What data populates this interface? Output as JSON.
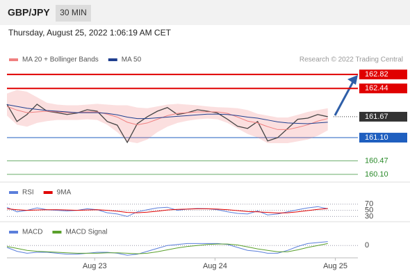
{
  "header": {
    "symbol": "GBP/JPY",
    "interval": "30 MIN",
    "datetime": "Thursday, August 25, 2022 1:06:19 AM CET"
  },
  "chart_data": [
    {
      "type": "line",
      "credit": "Research © 2022 Trading Central",
      "x": [
        0,
        4,
        8,
        12,
        16,
        20,
        24,
        28,
        32,
        36,
        40,
        44,
        48,
        52,
        56,
        60,
        64,
        68,
        72,
        76,
        80,
        84,
        88,
        92,
        96,
        100,
        104,
        108,
        112,
        116,
        120,
        124,
        128
      ],
      "xlim": [
        0,
        140
      ],
      "xticks": [
        {
          "value": 35,
          "label": "Aug 23"
        },
        {
          "value": 83,
          "label": "Aug 24"
        },
        {
          "value": 131,
          "label": "Aug 25"
        }
      ],
      "ylim": [
        159.89,
        163.05
      ],
      "color": "#444444",
      "values": [
        162.01,
        161.54,
        161.73,
        162.01,
        161.82,
        161.78,
        161.73,
        161.77,
        161.86,
        161.82,
        161.54,
        161.44,
        160.97,
        161.48,
        161.67,
        161.82,
        161.92,
        161.73,
        161.78,
        161.86,
        161.82,
        161.77,
        161.6,
        161.41,
        161.35,
        161.54,
        161.01,
        161.1,
        161.35,
        161.6,
        161.63,
        161.73,
        161.67
      ],
      "series": [
        {
          "name": "MA 20 + Bollinger Bands",
          "color": "#f08080",
          "values": [
            161.95,
            161.85,
            161.78,
            161.8,
            161.82,
            161.8,
            161.78,
            161.78,
            161.8,
            161.8,
            161.74,
            161.66,
            161.52,
            161.45,
            161.5,
            161.6,
            161.7,
            161.76,
            161.78,
            161.8,
            161.8,
            161.8,
            161.76,
            161.66,
            161.55,
            161.5,
            161.4,
            161.32,
            161.32,
            161.38,
            161.45,
            161.55,
            161.62
          ],
          "upper": [
            162.3,
            162.4,
            162.35,
            162.2,
            162.05,
            162.0,
            161.98,
            161.98,
            162.0,
            162.02,
            162.0,
            161.98,
            161.98,
            161.92,
            161.9,
            161.95,
            162.0,
            162.02,
            162.0,
            161.98,
            161.95,
            161.93,
            161.92,
            161.9,
            161.85,
            161.75,
            161.7,
            161.65,
            161.65,
            161.72,
            161.8,
            161.85,
            161.9
          ],
          "lower": [
            161.7,
            161.45,
            161.4,
            161.5,
            161.55,
            161.58,
            161.58,
            161.58,
            161.6,
            161.58,
            161.45,
            161.25,
            161.0,
            160.95,
            161.05,
            161.25,
            161.4,
            161.5,
            161.56,
            161.6,
            161.62,
            161.6,
            161.5,
            161.35,
            161.2,
            161.1,
            160.95,
            160.95,
            160.95,
            161.0,
            161.05,
            161.15,
            161.3
          ]
        },
        {
          "name": "MA 50",
          "color": "#1f3f8f",
          "values": [
            162.0,
            161.95,
            161.9,
            161.87,
            161.84,
            161.82,
            161.8,
            161.78,
            161.78,
            161.78,
            161.76,
            161.72,
            161.66,
            161.62,
            161.62,
            161.64,
            161.66,
            161.68,
            161.7,
            161.72,
            161.74,
            161.74,
            161.73,
            161.7,
            161.66,
            161.63,
            161.58,
            161.53,
            161.5,
            161.49,
            161.48,
            161.5,
            161.52
          ]
        }
      ],
      "levels": {
        "values": [
          162.82,
          162.44,
          161.67,
          161.1,
          160.47,
          160.1
        ],
        "value_labels": [
          "162.82",
          "162.44",
          "161.67",
          "161.10",
          "160.47",
          "160.10"
        ],
        "colors": [
          "#e00000",
          "#e00000",
          "#333333",
          "#1f5fbf",
          "#2a8a2a",
          "#2a8a2a"
        ],
        "label_fill": [
          true,
          true,
          true,
          true,
          false,
          false
        ]
      }
    },
    {
      "type": "line",
      "ylim": [
        15,
        90
      ],
      "yticks": [
        70,
        50,
        30
      ],
      "series": [
        {
          "name": "RSI",
          "color": "#5b7fdb",
          "values": [
            60,
            45,
            50,
            58,
            52,
            50,
            48,
            50,
            55,
            52,
            42,
            38,
            30,
            45,
            52,
            58,
            60,
            50,
            54,
            56,
            55,
            52,
            45,
            40,
            38,
            48,
            35,
            38,
            45,
            52,
            58,
            62,
            55
          ]
        },
        {
          "name": "9MA",
          "color": "#e00000",
          "values": [
            55,
            52,
            50,
            51,
            52,
            52,
            51,
            50,
            51,
            52,
            50,
            47,
            43,
            42,
            44,
            47,
            51,
            53,
            54,
            55,
            55,
            54,
            52,
            49,
            46,
            45,
            43,
            41,
            42,
            45,
            49,
            53,
            56
          ]
        }
      ]
    },
    {
      "type": "line",
      "ylim": [
        -0.12,
        0.18
      ],
      "yticks": [
        0
      ],
      "series": [
        {
          "name": "MACD",
          "color": "#5b7fdb",
          "values": [
            -0.02,
            -0.06,
            -0.08,
            -0.07,
            -0.07,
            -0.08,
            -0.09,
            -0.09,
            -0.08,
            -0.07,
            -0.07,
            -0.08,
            -0.1,
            -0.09,
            -0.06,
            -0.03,
            0.0,
            0.01,
            0.02,
            0.02,
            0.02,
            0.02,
            0.01,
            -0.02,
            -0.05,
            -0.06,
            -0.08,
            -0.08,
            -0.05,
            -0.01,
            0.02,
            0.03,
            0.04
          ]
        },
        {
          "name": "MACD Signal",
          "color": "#5aa02c",
          "values": [
            -0.01,
            -0.03,
            -0.05,
            -0.06,
            -0.065,
            -0.07,
            -0.075,
            -0.08,
            -0.08,
            -0.08,
            -0.075,
            -0.075,
            -0.08,
            -0.085,
            -0.08,
            -0.065,
            -0.045,
            -0.025,
            -0.01,
            0.0,
            0.01,
            0.015,
            0.015,
            0.005,
            -0.015,
            -0.035,
            -0.05,
            -0.065,
            -0.065,
            -0.045,
            -0.02,
            0.0,
            0.02
          ]
        }
      ]
    }
  ]
}
